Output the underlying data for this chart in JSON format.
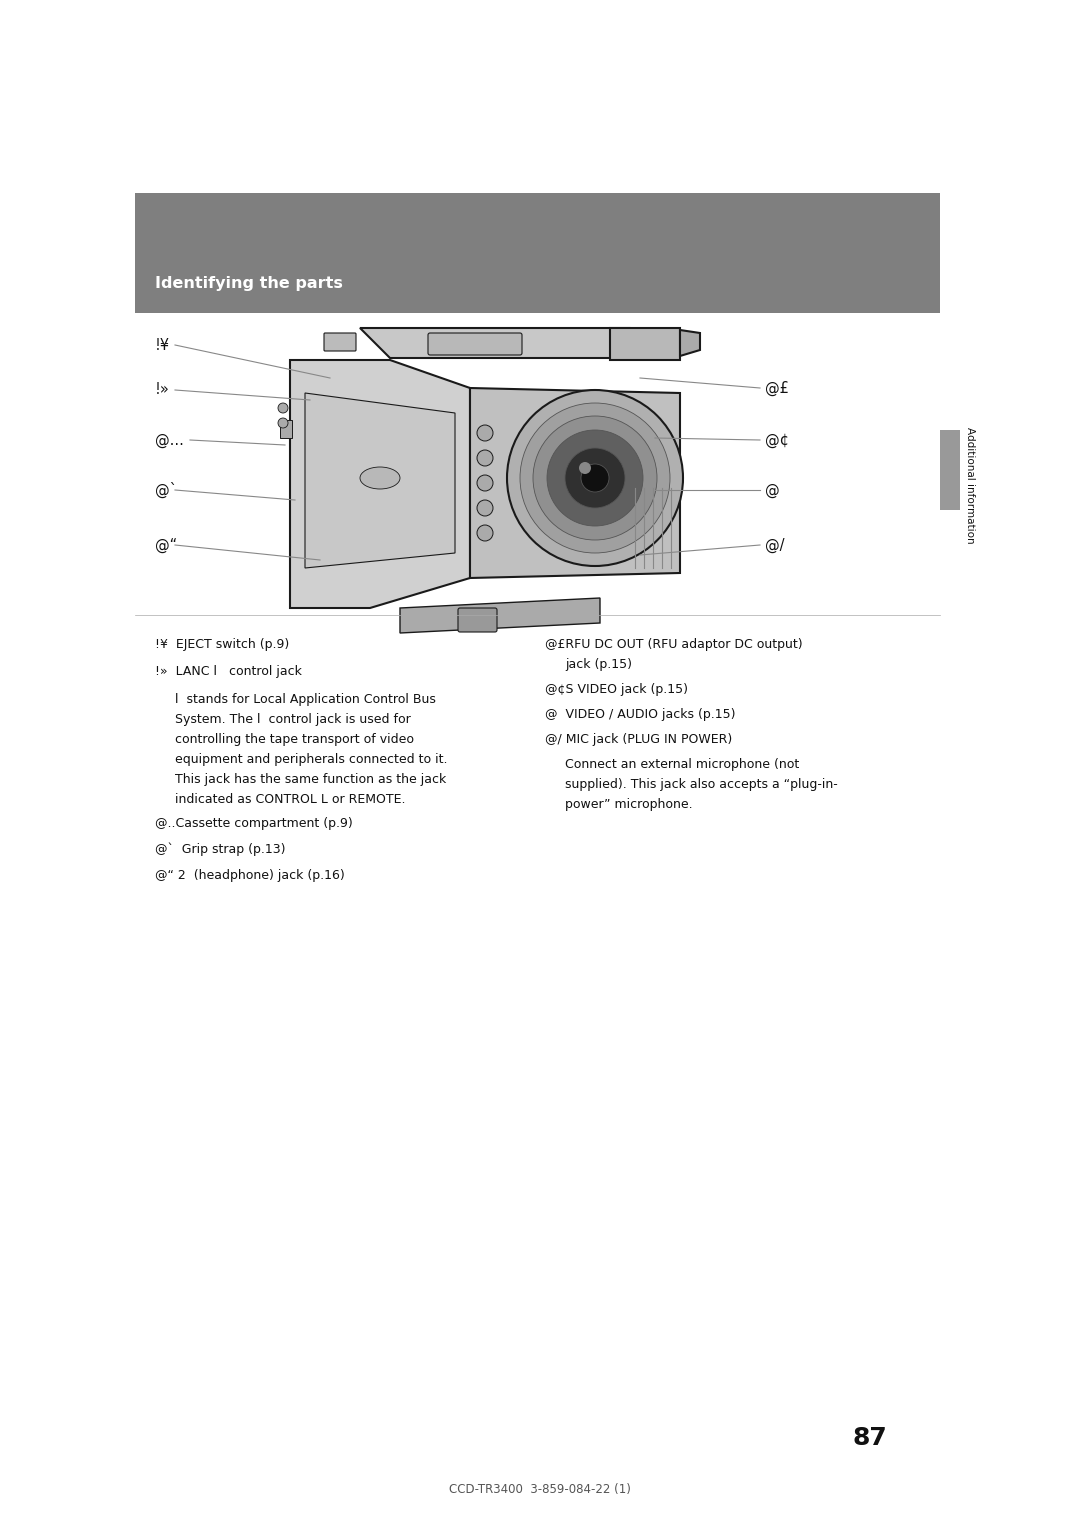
{
  "page_bg": "#ffffff",
  "header_bg": "#7f7f7f",
  "header_text": "Identifying the parts",
  "header_text_color": "#ffffff",
  "page_number": "87",
  "footer_text": "CCD-TR3400  3-859-084-22 (1)",
  "side_label": "Additional information",
  "camcorder_color_body": "#d4d4d4",
  "camcorder_color_dark": "#888888",
  "camcorder_outline": "#1a1a1a",
  "line_color": "#888888",
  "text_color": "#111111",
  "font_size_desc": 9.0,
  "font_size_label": 10.5,
  "font_size_header": 11.5,
  "font_size_page": 18,
  "font_size_footer": 8.5,
  "font_size_side": 7.5
}
